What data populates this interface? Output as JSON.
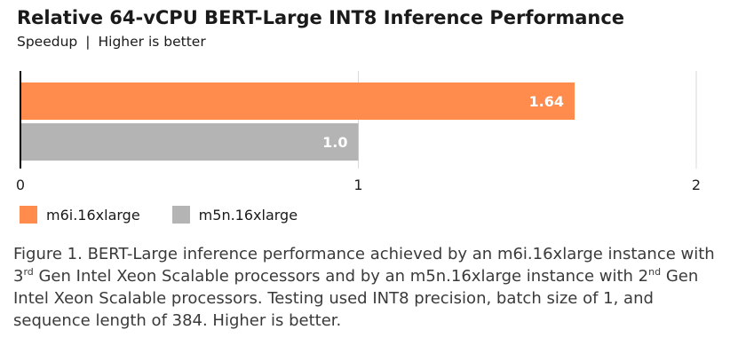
{
  "title": "Relative 64-vCPU BERT-Large INT8 Inference Performance",
  "subtitle": {
    "left": "Speedup",
    "separator": "|",
    "right": "Higher is better"
  },
  "caption": {
    "p1": "Figure 1. BERT-Large inference performance achieved by an m6i.16xlarge instance with 3",
    "sup1": "rd",
    "p2": " Gen Intel Xeon Scalable processors and by an m5n.16xlarge instance with 2",
    "sup2": "nd",
    "p3": " Gen Intel Xeon Scalable processors. Testing used INT8 precision, batch size of 1, and sequence length of 384. Higher is better."
  },
  "chart_data": {
    "type": "bar",
    "orientation": "horizontal",
    "title": "Relative 64-vCPU BERT-Large INT8 Inference Performance",
    "subtitle": "Speedup | Higher is better",
    "xlabel": "",
    "ylabel": "",
    "xlim": [
      0,
      2
    ],
    "xticks": [
      0,
      1,
      2
    ],
    "tick_labels": [
      "0",
      "1",
      "2"
    ],
    "grid": true,
    "legend_position": "bottom-left",
    "series": [
      {
        "name": "m6i.16xlarge",
        "value": 1.64,
        "label": "1.64",
        "color": "#ff8c4c"
      },
      {
        "name": "m5n.16xlarge",
        "value": 1.0,
        "label": "1.0",
        "color": "#b4b4b4"
      }
    ]
  }
}
